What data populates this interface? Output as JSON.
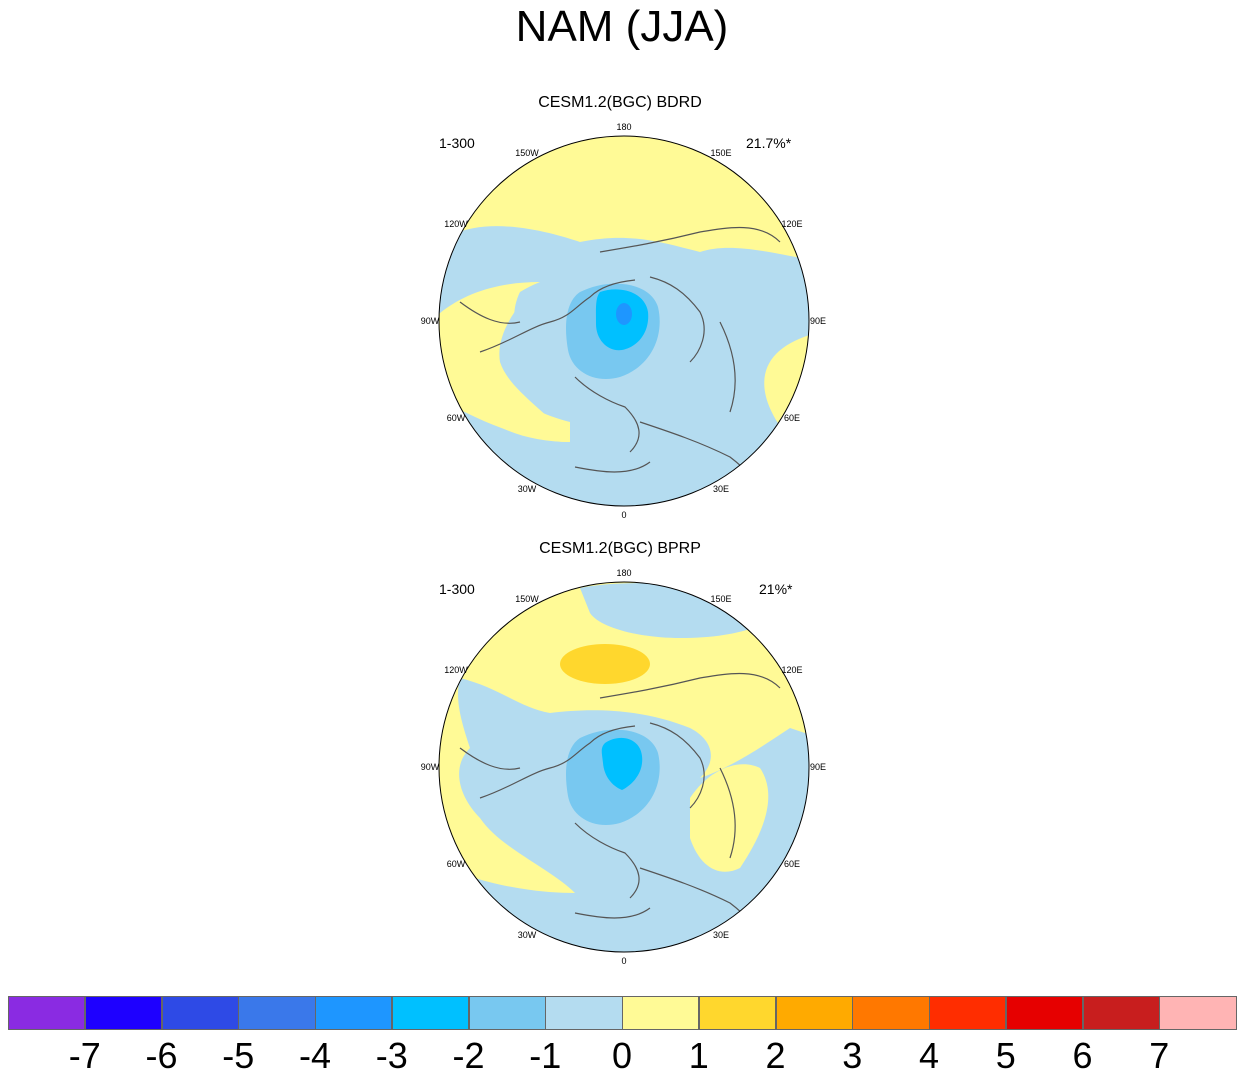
{
  "title": "NAM (JJA)",
  "panels": [
    {
      "title": "CESM1.2(BGC) BDRD",
      "left_label": "1-300",
      "right_label": "21.7%*"
    },
    {
      "title": "CESM1.2(BGC) BPRP",
      "left_label": "1-300",
      "right_label": "21%*"
    }
  ],
  "longitude_labels": [
    "180",
    "150E",
    "120E",
    "90E",
    "60E",
    "30E",
    "0",
    "30W",
    "60W",
    "90W",
    "120W",
    "150W"
  ],
  "colorbar": {
    "colors": [
      "#8a2be2",
      "#1e00ff",
      "#2e4ae6",
      "#3a78ea",
      "#1e96ff",
      "#00c0ff",
      "#78c8f0",
      "#b4dcf0",
      "#fffa96",
      "#ffd72d",
      "#ffaa00",
      "#ff7800",
      "#ff2d00",
      "#e60000",
      "#c81e1e",
      "#ffb4b4"
    ],
    "labels": [
      "-7",
      "-6",
      "-5",
      "-4",
      "-3",
      "-2",
      "-1",
      "0",
      "1",
      "2",
      "3",
      "4",
      "5",
      "6",
      "7"
    ]
  }
}
